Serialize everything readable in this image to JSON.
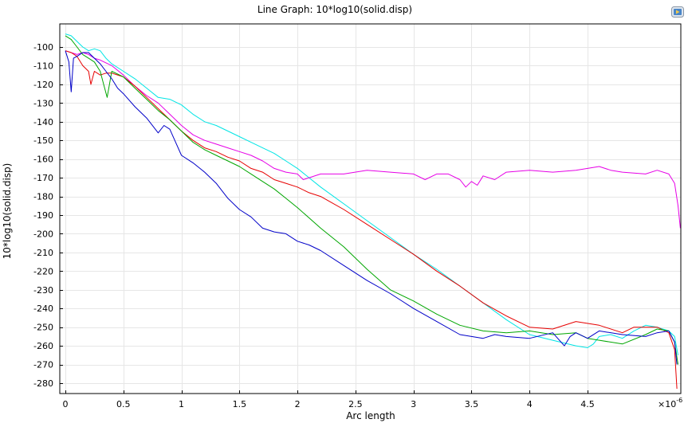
{
  "chart_data": {
    "type": "line",
    "title": "Line Graph: 10*log10(solid.disp)",
    "xlabel": "Arc length",
    "ylabel": "10*log10(solid.disp)",
    "x_multiplier_label": "×10",
    "x_multiplier_exp": "-6",
    "xlim": [
      0,
      5.3
    ],
    "ylim": [
      -285,
      -94
    ],
    "grid": true,
    "x_ticks": [
      0,
      0.5,
      1,
      1.5,
      2,
      2.5,
      3,
      3.5,
      4,
      4.5
    ],
    "x_tick_labels": [
      "0",
      "0.5",
      "1",
      "1.5",
      "2",
      "2.5",
      "3",
      "3.5",
      "4",
      "4.5"
    ],
    "y_ticks": [
      -100,
      -110,
      -120,
      -130,
      -140,
      -150,
      -160,
      -170,
      -180,
      -190,
      -200,
      -210,
      -220,
      -230,
      -240,
      -250,
      -260,
      -270,
      -280
    ],
    "y_tick_labels": [
      "-100",
      "-110",
      "-120",
      "-130",
      "-140",
      "-150",
      "-160",
      "-170",
      "-180",
      "-190",
      "-200",
      "-210",
      "-220",
      "-230",
      "-240",
      "-250",
      "-260",
      "-270",
      "-280"
    ],
    "series": [
      {
        "color": "#00e5e5",
        "x": [
          0,
          0.05,
          0.1,
          0.15,
          0.2,
          0.25,
          0.3,
          0.35,
          0.4,
          0.5,
          0.6,
          0.7,
          0.8,
          0.9,
          1.0,
          1.1,
          1.2,
          1.3,
          1.4,
          1.5,
          1.6,
          1.7,
          1.8,
          1.9,
          2.0,
          2.2,
          2.4,
          2.6,
          2.8,
          3.0,
          3.2,
          3.4,
          3.6,
          3.8,
          4.0,
          4.2,
          4.4,
          4.5,
          4.55,
          4.6,
          4.7,
          4.8,
          4.9,
          5.0,
          5.1,
          5.2,
          5.25,
          5.28
        ],
        "y": [
          -93,
          -94,
          -97,
          -100,
          -102,
          -101,
          -102,
          -106,
          -109,
          -113,
          -117,
          -122,
          -127,
          -128,
          -131,
          -136,
          -140,
          -142,
          -145,
          -148,
          -151,
          -154,
          -157,
          -161,
          -165,
          -175,
          -184,
          -193,
          -202,
          -211,
          -219,
          -228,
          -237,
          -246,
          -254,
          -257,
          -260,
          -261,
          -259,
          -255,
          -254,
          -256,
          -252,
          -249,
          -250,
          -252,
          -255,
          -265
        ]
      },
      {
        "color": "#e600e6",
        "x": [
          0,
          0.05,
          0.1,
          0.15,
          0.2,
          0.25,
          0.3,
          0.4,
          0.5,
          0.6,
          0.7,
          0.8,
          0.9,
          1.0,
          1.1,
          1.2,
          1.3,
          1.4,
          1.5,
          1.6,
          1.7,
          1.8,
          1.9,
          2.0,
          2.05,
          2.1,
          2.2,
          2.4,
          2.6,
          2.8,
          3.0,
          3.1,
          3.2,
          3.3,
          3.4,
          3.45,
          3.5,
          3.55,
          3.6,
          3.7,
          3.8,
          4.0,
          4.2,
          4.4,
          4.6,
          4.7,
          4.8,
          5.0,
          5.1,
          5.2,
          5.25,
          5.28,
          5.3
        ],
        "y": [
          -102,
          -103,
          -104,
          -103,
          -104,
          -106,
          -107,
          -110,
          -115,
          -121,
          -126,
          -130,
          -136,
          -142,
          -147,
          -150,
          -152,
          -154,
          -156,
          -158,
          -161,
          -165,
          -167,
          -168,
          -171,
          -170,
          -168,
          -168,
          -166,
          -167,
          -168,
          -171,
          -168,
          -168,
          -171,
          -175,
          -172,
          -174,
          -169,
          -171,
          -167,
          -166,
          -167,
          -166,
          -164,
          -166,
          -167,
          -168,
          -166,
          -168,
          -173,
          -185,
          -197
        ]
      },
      {
        "color": "#e60000",
        "x": [
          0,
          0.05,
          0.1,
          0.15,
          0.2,
          0.22,
          0.25,
          0.3,
          0.35,
          0.4,
          0.5,
          0.6,
          0.7,
          0.8,
          0.9,
          1.0,
          1.1,
          1.2,
          1.3,
          1.4,
          1.5,
          1.6,
          1.7,
          1.8,
          1.9,
          2.0,
          2.1,
          2.2,
          2.4,
          2.6,
          2.8,
          3.0,
          3.2,
          3.4,
          3.6,
          3.8,
          4.0,
          4.2,
          4.4,
          4.6,
          4.8,
          4.9,
          5.0,
          5.1,
          5.2,
          5.25,
          5.27
        ],
        "y": [
          -102,
          -103,
          -105,
          -110,
          -113,
          -120,
          -113,
          -115,
          -114,
          -114,
          -116,
          -121,
          -127,
          -133,
          -139,
          -145,
          -150,
          -154,
          -156,
          -159,
          -161,
          -165,
          -167,
          -171,
          -173,
          -175,
          -178,
          -180,
          -187,
          -195,
          -203,
          -211,
          -220,
          -228,
          -237,
          -244,
          -250,
          -251,
          -247,
          -249,
          -253,
          -250,
          -250,
          -250,
          -253,
          -262,
          -283
        ]
      },
      {
        "color": "#00a600",
        "x": [
          0,
          0.05,
          0.1,
          0.15,
          0.2,
          0.25,
          0.3,
          0.33,
          0.36,
          0.4,
          0.5,
          0.6,
          0.7,
          0.8,
          0.9,
          1.0,
          1.1,
          1.2,
          1.3,
          1.4,
          1.5,
          1.6,
          1.7,
          1.8,
          1.9,
          2.0,
          2.2,
          2.4,
          2.6,
          2.8,
          3.0,
          3.2,
          3.4,
          3.6,
          3.8,
          4.0,
          4.2,
          4.4,
          4.5,
          4.6,
          4.8,
          5.0,
          5.1,
          5.2,
          5.25,
          5.28
        ],
        "y": [
          -94,
          -96,
          -100,
          -104,
          -106,
          -108,
          -113,
          -120,
          -127,
          -113,
          -116,
          -122,
          -128,
          -134,
          -139,
          -145,
          -151,
          -155,
          -158,
          -161,
          -164,
          -168,
          -172,
          -176,
          -181,
          -186,
          -197,
          -207,
          -219,
          -230,
          -236,
          -243,
          -249,
          -252,
          -253,
          -252,
          -254,
          -253,
          -256,
          -257,
          -259,
          -254,
          -251,
          -252,
          -258,
          -270
        ]
      },
      {
        "color": "#0000c8",
        "x": [
          0,
          0.03,
          0.05,
          0.07,
          0.1,
          0.15,
          0.2,
          0.25,
          0.3,
          0.35,
          0.4,
          0.45,
          0.5,
          0.6,
          0.7,
          0.8,
          0.85,
          0.9,
          0.95,
          1.0,
          1.1,
          1.2,
          1.3,
          1.4,
          1.5,
          1.6,
          1.7,
          1.8,
          1.9,
          2.0,
          2.1,
          2.2,
          2.4,
          2.6,
          2.8,
          3.0,
          3.2,
          3.4,
          3.6,
          3.7,
          3.8,
          4.0,
          4.2,
          4.3,
          4.35,
          4.4,
          4.5,
          4.6,
          4.8,
          5.0,
          5.1,
          5.2,
          5.25,
          5.27
        ],
        "y": [
          -102,
          -108,
          -124,
          -106,
          -105,
          -103,
          -103,
          -106,
          -109,
          -113,
          -117,
          -122,
          -125,
          -132,
          -138,
          -146,
          -142,
          -144,
          -151,
          -158,
          -162,
          -167,
          -173,
          -181,
          -187,
          -191,
          -197,
          -199,
          -200,
          -204,
          -206,
          -209,
          -217,
          -225,
          -232,
          -240,
          -247,
          -254,
          -256,
          -254,
          -255,
          -256,
          -253,
          -260,
          -255,
          -253,
          -256,
          -252,
          -254,
          -255,
          -253,
          -252,
          -258,
          -270
        ]
      }
    ]
  }
}
